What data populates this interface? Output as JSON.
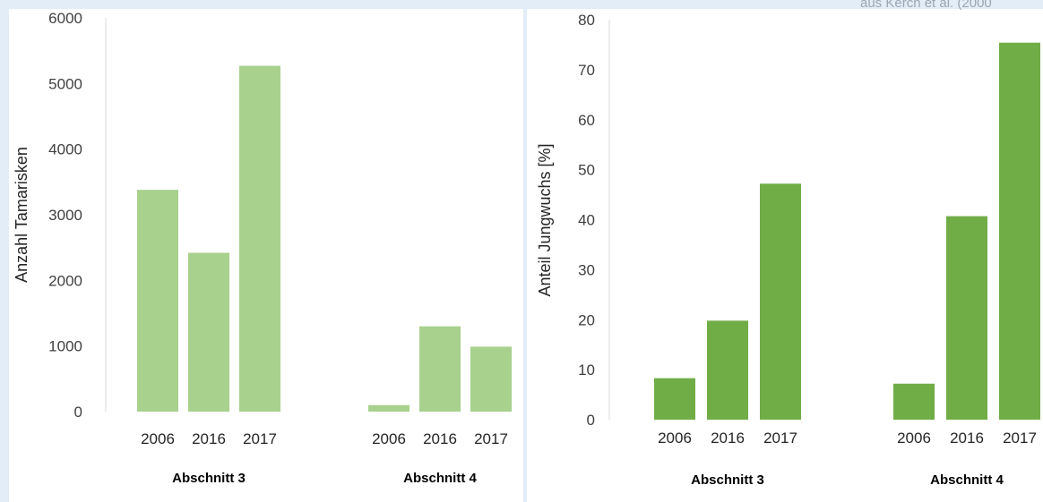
{
  "source_credit": "aus Kerch et al. (2000",
  "colors": {
    "light_green": "#a8d18d",
    "dark_green": "#70ad47",
    "axis": "#d9d9d9",
    "text": "#404040",
    "page_bg": "#e3edf7"
  },
  "chart_data": [
    {
      "type": "bar",
      "ylabel": "Anzahl Tamarisken",
      "ylim": [
        0,
        6000
      ],
      "yticks": [
        0,
        1000,
        2000,
        3000,
        4000,
        5000,
        6000
      ],
      "grid": false,
      "groups": [
        {
          "label": "Abschnitt 3",
          "categories": [
            "2006",
            "2016",
            "2017"
          ],
          "values": [
            3380,
            2420,
            5270
          ]
        },
        {
          "label": "Abschnitt 4",
          "categories": [
            "2006",
            "2016",
            "2017"
          ],
          "values": [
            100,
            1300,
            990
          ]
        }
      ]
    },
    {
      "type": "bar",
      "ylabel": "Anteil Jungwuchs [%]",
      "ylim": [
        0,
        80
      ],
      "yticks": [
        0,
        10,
        20,
        30,
        40,
        50,
        60,
        70,
        80
      ],
      "grid": false,
      "groups": [
        {
          "label": "Abschnitt 3",
          "categories": [
            "2006",
            "2016",
            "2017"
          ],
          "values": [
            8.3,
            19.8,
            47.2
          ]
        },
        {
          "label": "Abschnitt 4",
          "categories": [
            "2006",
            "2016",
            "2017"
          ],
          "values": [
            7.2,
            40.7,
            75.4
          ]
        }
      ]
    }
  ]
}
